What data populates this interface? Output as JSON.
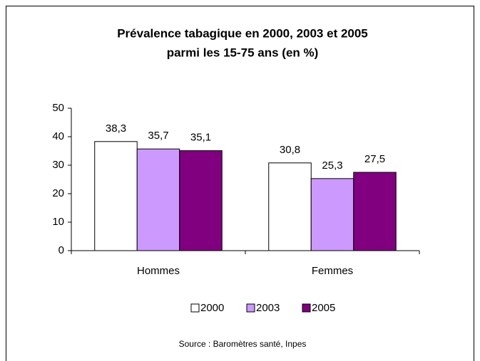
{
  "chart_data": {
    "type": "bar",
    "title": [
      "Prévalence tabagique en 2000, 2003 et 2005",
      "parmi les 15-75 ans (en %)"
    ],
    "categories": [
      "Hommes",
      "Femmes"
    ],
    "series": [
      {
        "name": "2000",
        "color": "#ffffff",
        "values": [
          38.3,
          30.8
        ],
        "value_labels": [
          "38,3",
          "30,8"
        ]
      },
      {
        "name": "2003",
        "color": "#cc99ff",
        "values": [
          35.7,
          25.3
        ],
        "value_labels": [
          "35,7",
          "25,3"
        ]
      },
      {
        "name": "2005",
        "color": "#800080",
        "values": [
          35.1,
          27.5
        ],
        "value_labels": [
          "35,1",
          "27,5"
        ]
      }
    ],
    "ylim": [
      0,
      50
    ],
    "yticks": [
      0,
      10,
      20,
      30,
      40,
      50
    ],
    "legend": "bottom",
    "source": "Source : Baromètres santé, Inpes"
  }
}
